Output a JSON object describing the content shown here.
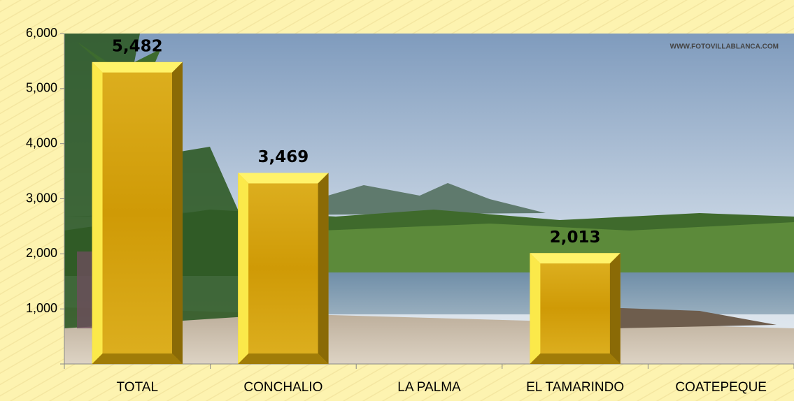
{
  "chart_data": {
    "type": "bar",
    "watermark": "WWW.FOTOVILLABLANCA.COM",
    "categories": [
      "TOTAL",
      "CONCHALIO",
      "LA PALMA",
      "EL TAMARINDO",
      "COATEPEQUE"
    ],
    "values": [
      5482,
      3469,
      null,
      2013,
      null
    ],
    "value_labels": [
      "5,482",
      "3,469",
      null,
      "2,013",
      null
    ],
    "color": "#d4a00e",
    "ylim": [
      0,
      6000
    ],
    "yticks": [
      {
        "value": 1000,
        "label": "1,000"
      },
      {
        "value": 2000,
        "label": "2,000"
      },
      {
        "value": 3000,
        "label": "3,000"
      },
      {
        "value": 4000,
        "label": "4,000"
      },
      {
        "value": 5000,
        "label": "5,000"
      },
      {
        "value": 6000,
        "label": "6,000"
      }
    ]
  }
}
